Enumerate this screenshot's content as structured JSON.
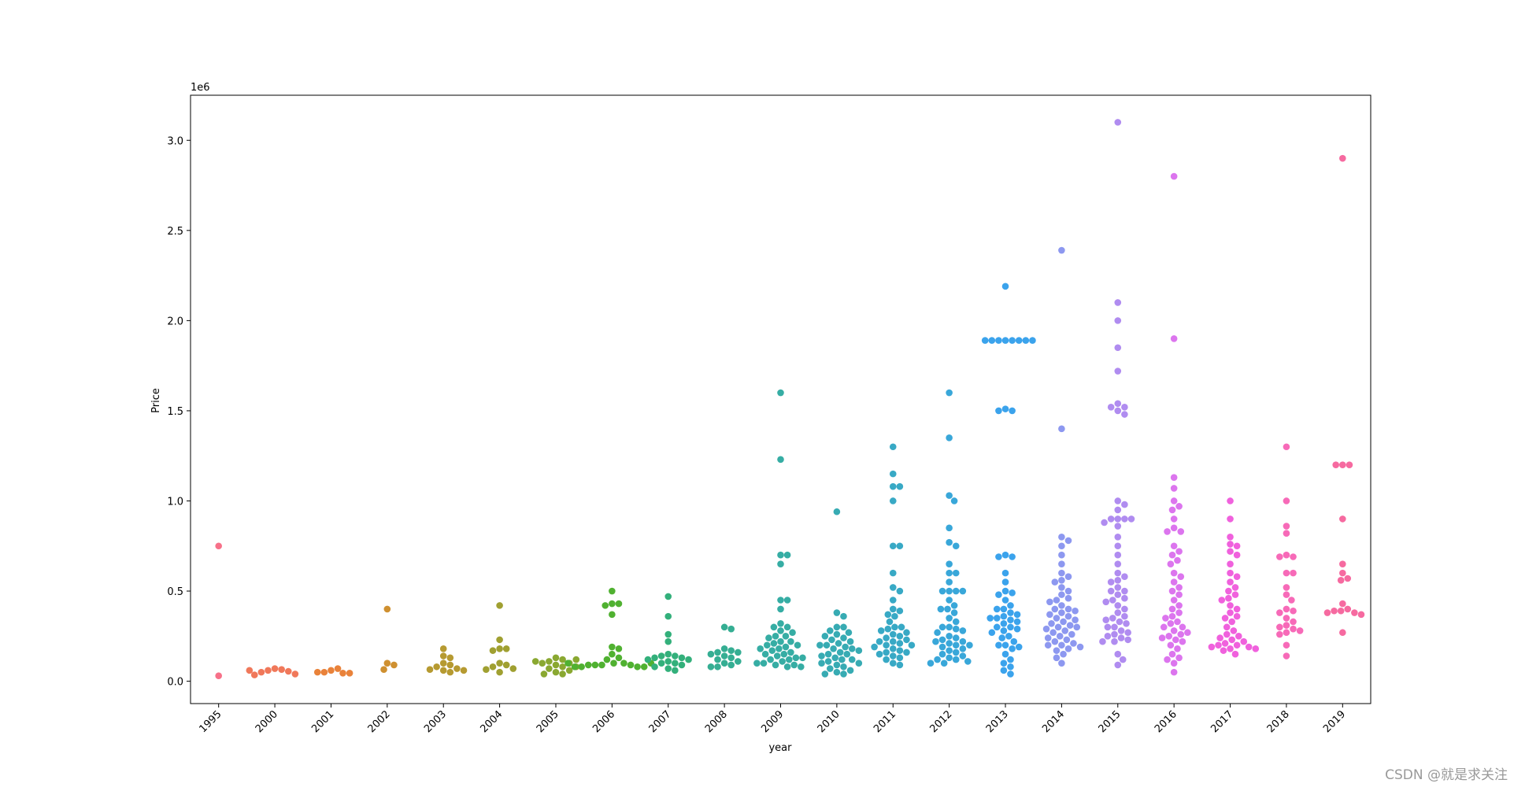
{
  "chart_data": {
    "type": "swarm",
    "x_label": "year",
    "y_label": "Price",
    "offset_text": "1e6",
    "watermark": "CSDN @就是求关注",
    "categories": [
      "1995",
      "2000",
      "2001",
      "2002",
      "2003",
      "2004",
      "2005",
      "2006",
      "2007",
      "2008",
      "2009",
      "2010",
      "2011",
      "2012",
      "2013",
      "2014",
      "2015",
      "2016",
      "2017",
      "2018",
      "2019"
    ],
    "colors": [
      "#f77189",
      "#f0785a",
      "#e9823a",
      "#cf9030",
      "#b69a31",
      "#a0a031",
      "#8aa831",
      "#50b131",
      "#33b07b",
      "#35ae93",
      "#36ada4",
      "#37abb3",
      "#38a9c5",
      "#39a7d9",
      "#3ba3ec",
      "#8d98f0",
      "#b08cf0",
      "#dc75ee",
      "#f061dd",
      "#f76ab8",
      "#f66aa0"
    ],
    "values": [
      [
        0.75,
        0.03
      ],
      [
        0.07,
        0.065,
        0.06,
        0.055,
        0.05,
        0.04,
        0.035,
        0.06
      ],
      [
        0.06,
        0.07,
        0.05,
        0.045,
        0.05,
        0.045
      ],
      [
        0.4,
        0.1,
        0.09,
        0.065
      ],
      [
        0.18,
        0.14,
        0.13,
        0.1,
        0.09,
        0.08,
        0.07,
        0.065,
        0.06,
        0.06,
        0.05
      ],
      [
        0.42,
        0.23,
        0.18,
        0.18,
        0.17,
        0.1,
        0.09,
        0.08,
        0.07,
        0.065,
        0.05
      ],
      [
        0.13,
        0.12,
        0.11,
        0.1,
        0.1,
        0.09,
        0.08,
        0.08,
        0.07,
        0.06,
        0.05,
        0.04,
        0.04,
        0.12,
        0.11
      ],
      [
        0.5,
        0.43,
        0.43,
        0.42,
        0.37,
        0.19,
        0.18,
        0.15,
        0.13,
        0.12,
        0.1,
        0.1,
        0.09,
        0.09,
        0.09,
        0.09,
        0.08,
        0.08,
        0.08,
        0.08,
        0.1,
        0.1
      ],
      [
        0.47,
        0.36,
        0.26,
        0.22,
        0.15,
        0.14,
        0.14,
        0.13,
        0.13,
        0.12,
        0.12,
        0.11,
        0.1,
        0.1,
        0.09,
        0.08,
        0.07,
        0.06
      ],
      [
        0.3,
        0.29,
        0.18,
        0.17,
        0.16,
        0.16,
        0.15,
        0.14,
        0.13,
        0.12,
        0.11,
        0.1,
        0.09,
        0.08,
        0.08
      ],
      [
        1.6,
        1.23,
        0.7,
        0.7,
        0.65,
        0.45,
        0.45,
        0.4,
        0.32,
        0.3,
        0.3,
        0.28,
        0.27,
        0.25,
        0.25,
        0.24,
        0.22,
        0.22,
        0.21,
        0.2,
        0.2,
        0.19,
        0.18,
        0.18,
        0.17,
        0.16,
        0.15,
        0.15,
        0.14,
        0.13,
        0.13,
        0.12,
        0.12,
        0.11,
        0.1,
        0.1,
        0.09,
        0.09,
        0.08,
        0.08
      ],
      [
        0.94,
        0.38,
        0.36,
        0.3,
        0.3,
        0.28,
        0.27,
        0.26,
        0.25,
        0.24,
        0.23,
        0.22,
        0.21,
        0.2,
        0.2,
        0.19,
        0.18,
        0.18,
        0.17,
        0.16,
        0.15,
        0.15,
        0.14,
        0.13,
        0.12,
        0.12,
        0.11,
        0.1,
        0.1,
        0.09,
        0.08,
        0.07,
        0.06,
        0.05,
        0.04,
        0.04
      ],
      [
        1.3,
        1.15,
        1.08,
        1.08,
        1.0,
        0.75,
        0.75,
        0.6,
        0.52,
        0.5,
        0.45,
        0.4,
        0.39,
        0.37,
        0.36,
        0.33,
        0.3,
        0.3,
        0.29,
        0.28,
        0.27,
        0.26,
        0.25,
        0.24,
        0.23,
        0.22,
        0.22,
        0.21,
        0.2,
        0.2,
        0.19,
        0.18,
        0.17,
        0.16,
        0.16,
        0.15,
        0.14,
        0.13,
        0.12,
        0.1,
        0.09
      ],
      [
        1.6,
        1.35,
        1.03,
        1.0,
        0.85,
        0.77,
        0.75,
        0.65,
        0.6,
        0.6,
        0.55,
        0.5,
        0.5,
        0.5,
        0.5,
        0.45,
        0.42,
        0.4,
        0.4,
        0.38,
        0.35,
        0.33,
        0.3,
        0.3,
        0.29,
        0.28,
        0.27,
        0.25,
        0.24,
        0.23,
        0.22,
        0.22,
        0.21,
        0.2,
        0.2,
        0.19,
        0.18,
        0.17,
        0.16,
        0.15,
        0.14,
        0.13,
        0.12,
        0.12,
        0.11,
        0.1,
        0.1
      ],
      [
        2.19,
        1.89,
        1.89,
        1.89,
        1.89,
        1.89,
        1.89,
        1.89,
        1.89,
        1.51,
        1.5,
        1.5,
        0.7,
        0.69,
        0.69,
        0.6,
        0.55,
        0.5,
        0.49,
        0.48,
        0.45,
        0.42,
        0.4,
        0.4,
        0.38,
        0.37,
        0.36,
        0.35,
        0.35,
        0.34,
        0.33,
        0.32,
        0.3,
        0.3,
        0.29,
        0.28,
        0.27,
        0.25,
        0.24,
        0.22,
        0.2,
        0.2,
        0.19,
        0.18,
        0.15,
        0.12,
        0.1,
        0.08,
        0.06,
        0.04
      ],
      [
        2.39,
        1.4,
        0.8,
        0.78,
        0.75,
        0.7,
        0.65,
        0.6,
        0.58,
        0.56,
        0.55,
        0.52,
        0.5,
        0.48,
        0.46,
        0.45,
        0.44,
        0.42,
        0.4,
        0.4,
        0.39,
        0.38,
        0.37,
        0.36,
        0.35,
        0.34,
        0.33,
        0.32,
        0.31,
        0.3,
        0.3,
        0.29,
        0.28,
        0.27,
        0.26,
        0.25,
        0.24,
        0.23,
        0.22,
        0.21,
        0.2,
        0.2,
        0.19,
        0.18,
        0.17,
        0.15,
        0.13,
        0.1
      ],
      [
        3.1,
        2.1,
        2.0,
        1.85,
        1.72,
        1.54,
        1.52,
        1.52,
        1.5,
        1.48,
        1.0,
        0.98,
        0.95,
        0.9,
        0.9,
        0.9,
        0.9,
        0.88,
        0.86,
        0.8,
        0.75,
        0.7,
        0.65,
        0.6,
        0.58,
        0.56,
        0.55,
        0.52,
        0.5,
        0.5,
        0.48,
        0.46,
        0.45,
        0.44,
        0.42,
        0.4,
        0.38,
        0.36,
        0.35,
        0.34,
        0.33,
        0.32,
        0.3,
        0.3,
        0.28,
        0.27,
        0.26,
        0.25,
        0.24,
        0.23,
        0.22,
        0.22,
        0.15,
        0.12,
        0.09
      ],
      [
        2.8,
        1.9,
        1.13,
        1.07,
        1.0,
        0.97,
        0.95,
        0.9,
        0.85,
        0.83,
        0.83,
        0.75,
        0.72,
        0.7,
        0.67,
        0.65,
        0.6,
        0.58,
        0.55,
        0.52,
        0.5,
        0.48,
        0.45,
        0.42,
        0.4,
        0.38,
        0.36,
        0.35,
        0.33,
        0.32,
        0.3,
        0.3,
        0.28,
        0.27,
        0.26,
        0.25,
        0.24,
        0.23,
        0.22,
        0.2,
        0.18,
        0.15,
        0.13,
        0.12,
        0.1,
        0.05
      ],
      [
        1.0,
        0.9,
        0.8,
        0.76,
        0.75,
        0.72,
        0.7,
        0.65,
        0.6,
        0.58,
        0.55,
        0.52,
        0.5,
        0.48,
        0.46,
        0.45,
        0.42,
        0.4,
        0.38,
        0.36,
        0.35,
        0.33,
        0.3,
        0.28,
        0.26,
        0.25,
        0.24,
        0.23,
        0.22,
        0.21,
        0.2,
        0.2,
        0.19,
        0.19,
        0.18,
        0.18,
        0.17,
        0.15
      ],
      [
        1.3,
        1.0,
        0.86,
        0.82,
        0.7,
        0.69,
        0.69,
        0.6,
        0.6,
        0.52,
        0.48,
        0.45,
        0.4,
        0.39,
        0.38,
        0.35,
        0.33,
        0.31,
        0.3,
        0.29,
        0.28,
        0.27,
        0.26,
        0.2,
        0.14
      ],
      [
        2.9,
        1.2,
        1.2,
        1.2,
        0.9,
        0.65,
        0.6,
        0.57,
        0.56,
        0.43,
        0.4,
        0.39,
        0.39,
        0.38,
        0.38,
        0.37,
        0.27
      ]
    ],
    "ylim": [
      -0.124,
      3.25
    ],
    "yticks": [
      {
        "value": 0,
        "label": "0.0"
      },
      0.5,
      {
        "value": 1,
        "label": "1.0"
      },
      1.5,
      {
        "value": 2,
        "label": "2.0"
      },
      2.5,
      {
        "value": 3,
        "label": "3.0"
      }
    ]
  }
}
